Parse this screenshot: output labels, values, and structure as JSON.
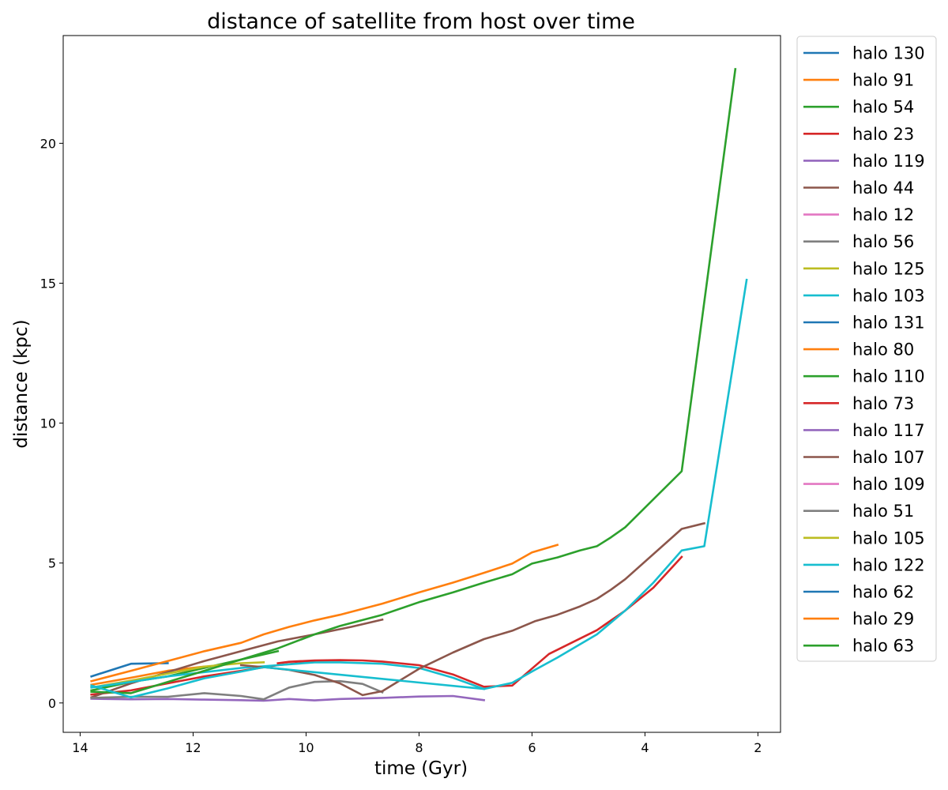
{
  "chart_data": {
    "type": "line",
    "title": "distance of satellite from host over time",
    "xlabel": "time (Gyr)",
    "ylabel": "distance (kpc)",
    "xlim": [
      14.3,
      1.6
    ],
    "ylim": [
      -1.05,
      23.85
    ],
    "x_inverted": true,
    "xticks": [
      14,
      12,
      10,
      8,
      6,
      4,
      2
    ],
    "yticks": [
      0,
      5,
      10,
      15,
      20
    ],
    "grid": false,
    "legend_position": "outside-right",
    "series": [
      {
        "name": "halo 130",
        "color": "#1f77b4",
        "x": [
          13.8,
          13.1,
          12.45
        ],
        "y": [
          0.95,
          1.4,
          1.42
        ]
      },
      {
        "name": "halo 91",
        "color": "#ff7f0e",
        "x": [
          13.8,
          13.1,
          12.45,
          11.8
        ],
        "y": [
          0.65,
          0.9,
          1.15,
          1.3
        ]
      },
      {
        "name": "halo 54",
        "color": "#2ca02c",
        "x": [
          13.8,
          13.1,
          12.45,
          11.8,
          11.15,
          10.5
        ],
        "y": [
          0.45,
          0.75,
          0.95,
          1.25,
          1.55,
          1.85
        ]
      },
      {
        "name": "halo 23",
        "color": "#d62728",
        "x": [
          13.8,
          13.1,
          12.45,
          11.8,
          11.15,
          10.5,
          9.85
        ],
        "y": [
          0.3,
          0.45,
          0.7,
          0.95,
          1.15,
          1.35,
          1.48
        ]
      },
      {
        "name": "halo 119",
        "color": "#9467bd",
        "x": [
          13.8,
          13.1,
          12.45,
          11.8,
          11.15,
          10.75,
          10.3,
          9.85,
          9.4,
          8.65,
          8.0,
          7.4,
          6.85
        ],
        "y": [
          0.15,
          0.13,
          0.14,
          0.12,
          0.1,
          0.08,
          0.14,
          0.09,
          0.14,
          0.18,
          0.23,
          0.25,
          0.1
        ]
      },
      {
        "name": "halo 44",
        "color": "#8c564b",
        "x": [
          13.8,
          13.1,
          12.45,
          11.8,
          11.15,
          10.5,
          9.85,
          9.2,
          8.65
        ],
        "y": [
          0.2,
          0.7,
          1.1,
          1.5,
          1.85,
          2.2,
          2.45,
          2.72,
          2.98
        ]
      },
      {
        "name": "halo 12",
        "color": "#e377c2",
        "x": [],
        "y": []
      },
      {
        "name": "halo 56",
        "color": "#7f7f7f",
        "x": [
          13.8,
          13.1,
          12.45,
          11.8,
          11.15,
          10.75,
          10.3,
          9.85,
          9.4,
          9.0,
          8.65
        ],
        "y": [
          0.18,
          0.22,
          0.22,
          0.35,
          0.25,
          0.13,
          0.55,
          0.75,
          0.78,
          0.68,
          0.38
        ]
      },
      {
        "name": "halo 125",
        "color": "#bcbd22",
        "x": [
          13.8,
          13.1,
          12.45,
          11.8,
          11.15,
          10.75
        ],
        "y": [
          0.55,
          0.8,
          1.05,
          1.3,
          1.42,
          1.45
        ]
      },
      {
        "name": "halo 103",
        "color": "#17becf",
        "x": [
          13.8,
          13.1,
          12.45,
          11.8,
          11.15,
          10.5,
          9.85,
          9.4,
          8.65,
          8.0,
          7.4,
          6.85
        ],
        "y": [
          0.55,
          0.75,
          0.95,
          1.1,
          1.25,
          1.35,
          1.45,
          1.45,
          1.4,
          1.25,
          0.9,
          0.5
        ]
      },
      {
        "name": "halo 131",
        "color": "#1f77b4",
        "x": [],
        "y": []
      },
      {
        "name": "halo 80",
        "color": "#ff7f0e",
        "x": [
          13.8,
          13.1,
          12.45,
          11.8,
          11.15,
          10.75,
          10.3,
          9.85,
          9.4,
          8.65,
          8.0,
          7.4,
          6.85,
          6.35,
          6.0,
          5.55
        ],
        "y": [
          0.78,
          1.15,
          1.5,
          1.85,
          2.15,
          2.45,
          2.72,
          2.95,
          3.15,
          3.55,
          3.95,
          4.3,
          4.65,
          4.98,
          5.38,
          5.65
        ]
      },
      {
        "name": "halo 110",
        "color": "#2ca02c",
        "x": [
          13.8,
          13.1,
          12.45,
          11.8,
          11.15,
          10.5,
          9.85,
          9.4,
          8.65,
          8.0,
          7.4,
          6.85,
          6.35,
          6.0,
          5.55,
          5.15,
          4.85,
          4.6,
          4.35,
          3.35,
          2.4
        ],
        "y": [
          0.4,
          0.35,
          0.75,
          1.15,
          1.55,
          1.95,
          2.45,
          2.75,
          3.15,
          3.6,
          3.95,
          4.3,
          4.6,
          4.98,
          5.2,
          5.45,
          5.6,
          5.92,
          6.28,
          8.28,
          22.65
        ]
      },
      {
        "name": "halo 73",
        "color": "#d62728",
        "x": [
          10.5,
          10.3,
          9.85,
          9.4,
          9.0,
          8.65,
          8.0,
          7.4,
          6.85,
          6.35,
          5.7,
          4.85,
          4.35,
          3.85,
          3.35
        ],
        "y": [
          1.42,
          1.47,
          1.52,
          1.53,
          1.52,
          1.48,
          1.35,
          1.02,
          0.58,
          0.62,
          1.75,
          2.6,
          3.3,
          4.12,
          5.22
        ]
      },
      {
        "name": "halo 117",
        "color": "#9467bd",
        "x": [],
        "y": []
      },
      {
        "name": "halo 107",
        "color": "#8c564b",
        "x": [
          11.15,
          10.75,
          10.3,
          9.85,
          9.4,
          9.0,
          8.65,
          8.0,
          7.4,
          6.85,
          6.35,
          5.95,
          5.55,
          5.15,
          4.85,
          4.6,
          4.35,
          3.35,
          2.95
        ],
        "y": [
          1.35,
          1.28,
          1.18,
          1.0,
          0.7,
          0.28,
          0.42,
          1.22,
          1.8,
          2.28,
          2.58,
          2.92,
          3.15,
          3.45,
          3.72,
          4.05,
          4.42,
          6.22,
          6.42
        ]
      },
      {
        "name": "halo 109",
        "color": "#e377c2",
        "x": [],
        "y": []
      },
      {
        "name": "halo 51",
        "color": "#7f7f7f",
        "x": [],
        "y": []
      },
      {
        "name": "halo 105",
        "color": "#bcbd22",
        "x": [],
        "y": []
      },
      {
        "name": "halo 122",
        "color": "#17becf",
        "x": [
          13.8,
          13.1,
          12.45,
          11.8,
          11.15,
          10.75,
          6.85,
          6.35,
          5.95,
          5.55,
          4.85,
          4.35,
          3.85,
          3.35,
          2.95,
          2.2
        ],
        "y": [
          0.62,
          0.2,
          0.52,
          0.88,
          1.12,
          1.28,
          0.5,
          0.72,
          1.18,
          1.62,
          2.45,
          3.3,
          4.3,
          5.45,
          5.6,
          15.12
        ]
      },
      {
        "name": "halo 62",
        "color": "#1f77b4",
        "x": [],
        "y": []
      },
      {
        "name": "halo 29",
        "color": "#ff7f0e",
        "x": [],
        "y": []
      },
      {
        "name": "halo 63",
        "color": "#2ca02c",
        "x": [],
        "y": []
      }
    ]
  }
}
